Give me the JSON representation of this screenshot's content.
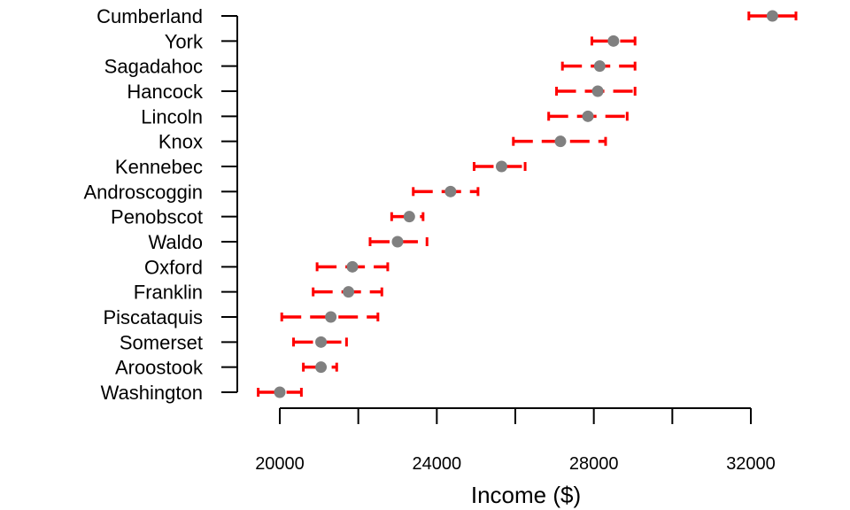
{
  "chart_data": {
    "type": "scatter",
    "title": "",
    "xlabel": "Income ($)",
    "ylabel": "",
    "xlim": [
      19500,
      33000
    ],
    "xticks": [
      20000,
      22000,
      24000,
      26000,
      28000,
      30000,
      32000
    ],
    "xtick_labels": [
      "20000",
      "",
      "24000",
      "",
      "28000",
      "",
      "32000"
    ],
    "grid": false,
    "colors": {
      "point": "#808080",
      "interval": "#ff0000",
      "axis": "#000000"
    },
    "categories": [
      "Cumberland",
      "York",
      "Sagadahoc",
      "Hancock",
      "Lincoln",
      "Knox",
      "Kennebec",
      "Androscoggin",
      "Penobscot",
      "Waldo",
      "Oxford",
      "Franklin",
      "Piscataquis",
      "Somerset",
      "Aroostook",
      "Washington"
    ],
    "values": [
      32550,
      28500,
      28150,
      28100,
      27850,
      27150,
      25650,
      24350,
      23300,
      23000,
      21850,
      21750,
      21300,
      21050,
      21050,
      20000
    ],
    "lower": [
      31950,
      27950,
      27200,
      27050,
      26850,
      25950,
      24950,
      23400,
      22850,
      22300,
      20950,
      20850,
      20050,
      20350,
      20600,
      19450
    ],
    "upper": [
      33150,
      29050,
      29050,
      29050,
      28850,
      28300,
      26250,
      25050,
      23650,
      23750,
      22750,
      22600,
      22500,
      21700,
      21450,
      20550
    ]
  }
}
